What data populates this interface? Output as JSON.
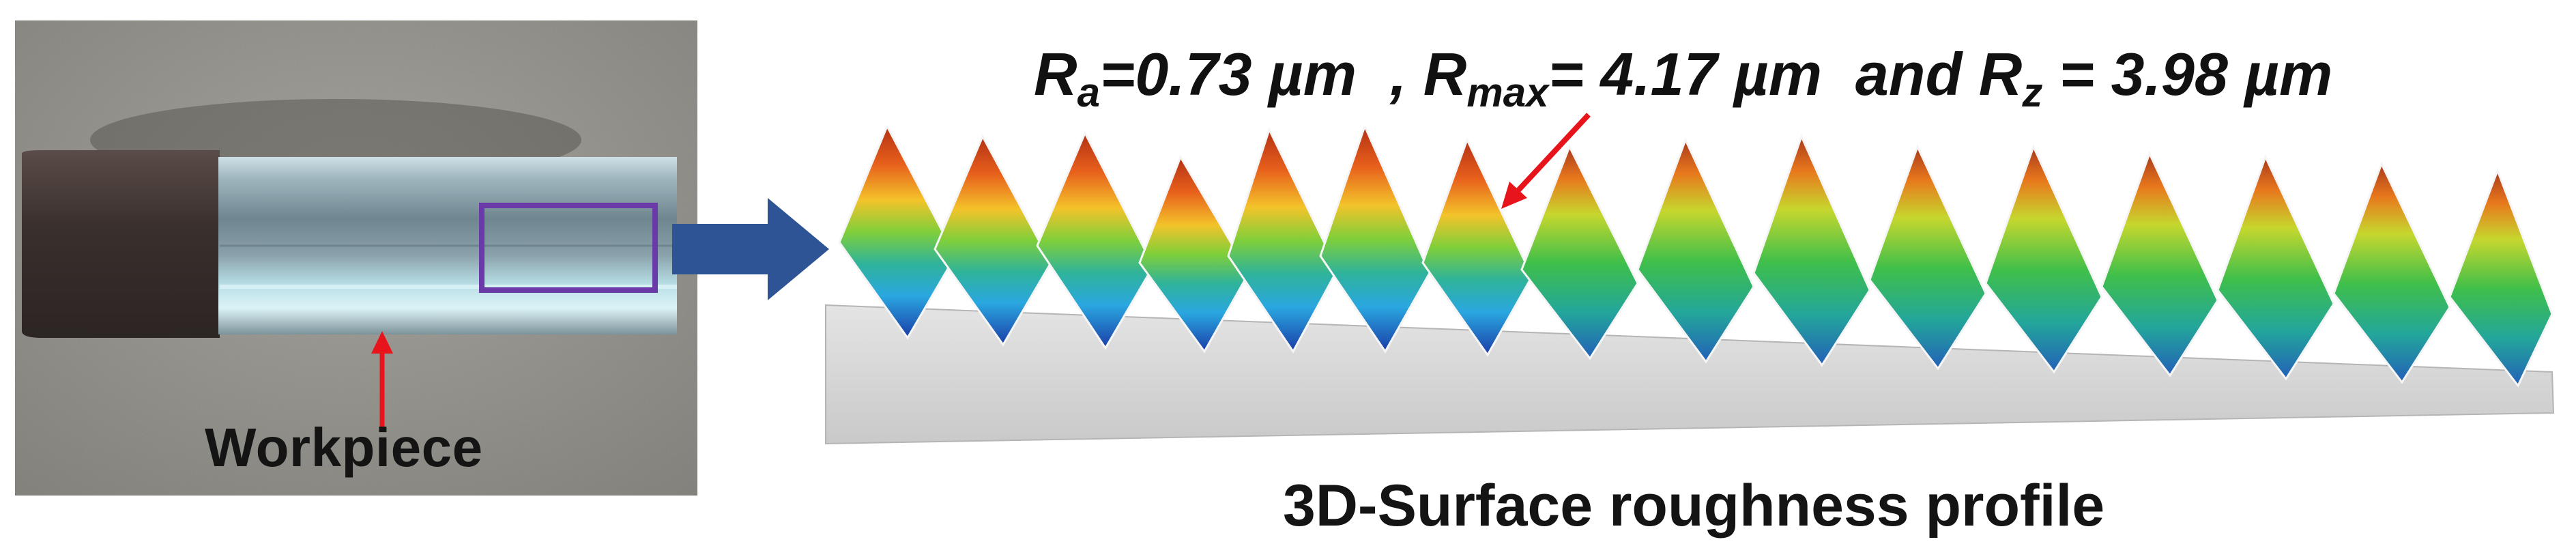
{
  "photo": {
    "label": "Workpiece"
  },
  "roughness": {
    "ra_symbol": "R",
    "ra_sub": "a",
    "ra_value": "=0.73 µm",
    "sep": "  , ",
    "rmax_symbol": "R",
    "rmax_sub": "max",
    "rmax_value": "= 4.17 µm",
    "and_text": "  and ",
    "rz_symbol": "R",
    "rz_sub": "z",
    "rz_value": " = 3.98 µm"
  },
  "profile": {
    "caption": "3D-Surface roughness profile"
  },
  "colors": {
    "arrow": "#2f5496",
    "highlight_box": "#6a3aa8",
    "pointer": "#e8141c"
  }
}
